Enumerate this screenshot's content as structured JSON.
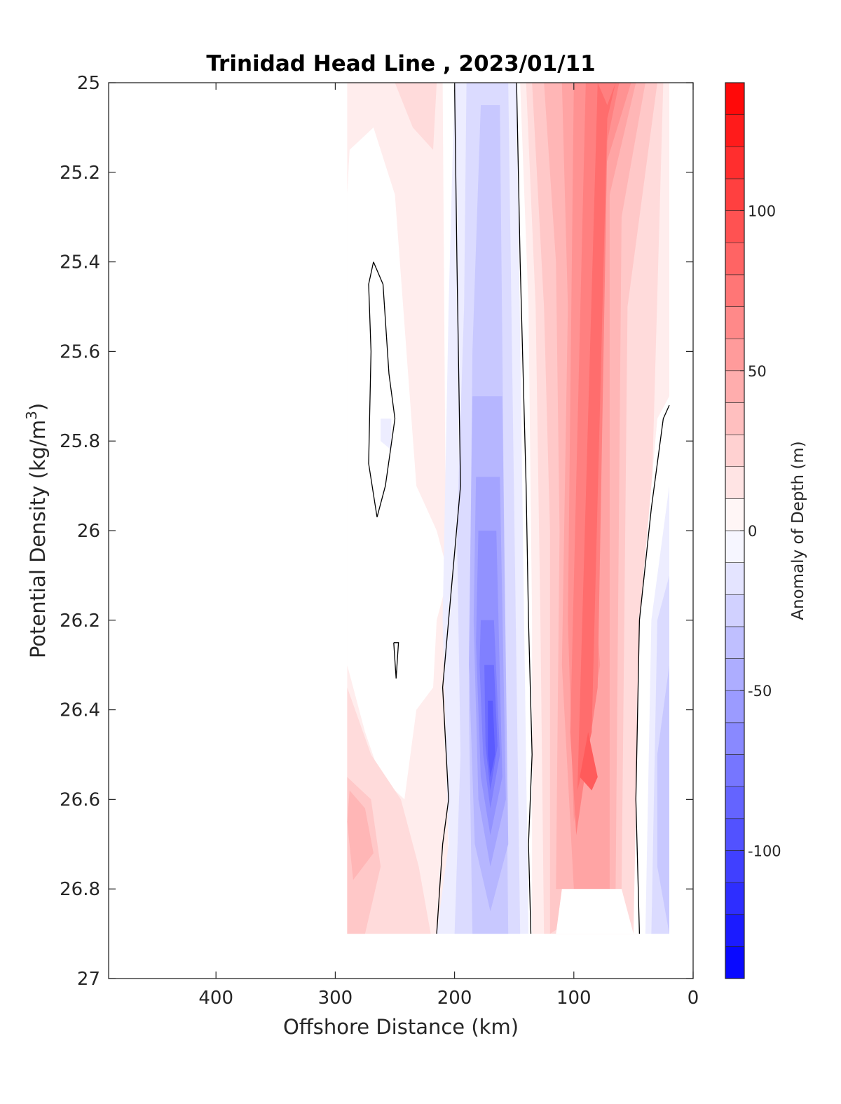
{
  "chart_data": {
    "type": "heatmap",
    "subtype": "filled-contour",
    "title": "Trinidad Head Line , 2023/01/11",
    "xlabel": "Offshore Distance (km)",
    "ylabel": "Potential Density (kg/m",
    "ylabel_sup": "3",
    "ylabel_tail": ")",
    "xlim": [
      490,
      0
    ],
    "x_reversed": true,
    "ylim": [
      25,
      27
    ],
    "y_reversed": true,
    "xticks": [
      400,
      300,
      200,
      100,
      0
    ],
    "xtick_labels": [
      "400",
      "300",
      "200",
      "100",
      "0"
    ],
    "yticks": [
      25,
      25.2,
      25.4,
      25.6,
      25.8,
      26,
      26.2,
      26.4,
      26.6,
      26.8,
      27
    ],
    "ytick_labels": [
      "25",
      "25.2",
      "25.4",
      "25.6",
      "25.8",
      "26",
      "26.2",
      "26.4",
      "26.6",
      "26.8",
      "27"
    ],
    "colorbar": {
      "label": "Anomaly of Depth (m)",
      "range": [
        -140,
        140
      ],
      "level_step": 10,
      "ticks": [
        100,
        50,
        0,
        -50,
        -100
      ],
      "tick_labels": [
        "100",
        "50",
        "0",
        "-50",
        "-100"
      ],
      "colormap": "blue-white-red",
      "neg_color": "#0000ff",
      "mid_color": "#ffffff",
      "pos_color": "#ff0000"
    },
    "data_extent": {
      "x": [
        20,
        290
      ],
      "y": [
        25,
        26.9
      ]
    },
    "bands": [
      {
        "name": "offshore-pink",
        "points": [
          [
            290,
            25
          ],
          [
            210,
            25
          ],
          [
            205,
            26.9
          ],
          [
            290,
            26.9
          ]
        ],
        "value": 10
      },
      {
        "name": "offshore-pink-top",
        "points": [
          [
            250,
            25
          ],
          [
            215,
            25
          ],
          [
            218,
            25.15
          ],
          [
            235,
            25.1
          ]
        ],
        "value": 20
      },
      {
        "name": "offshore-white-upper",
        "points": [
          [
            288,
            25.15
          ],
          [
            268,
            25.1
          ],
          [
            250,
            25.25
          ],
          [
            232,
            25.9
          ],
          [
            215,
            26
          ],
          [
            205,
            26.1
          ],
          [
            215,
            26.2
          ],
          [
            218,
            26.35
          ],
          [
            232,
            26.4
          ],
          [
            242,
            26.6
          ],
          [
            262,
            26.55
          ],
          [
            275,
            26.45
          ],
          [
            290,
            26.3
          ],
          [
            290,
            25.25
          ]
        ],
        "value": 0
      },
      {
        "name": "offshore-pink-lower",
        "points": [
          [
            290,
            26.35
          ],
          [
            270,
            26.5
          ],
          [
            245,
            26.6
          ],
          [
            230,
            26.75
          ],
          [
            220,
            26.9
          ],
          [
            290,
            26.9
          ]
        ],
        "value": 20
      },
      {
        "name": "offshore-pink-core1",
        "points": [
          [
            290,
            26.55
          ],
          [
            270,
            26.6
          ],
          [
            262,
            26.75
          ],
          [
            275,
            26.9
          ],
          [
            290,
            26.9
          ]
        ],
        "value": 30
      },
      {
        "name": "offshore-pink-core2",
        "points": [
          [
            288,
            26.58
          ],
          [
            275,
            26.62
          ],
          [
            268,
            26.72
          ],
          [
            285,
            26.78
          ],
          [
            290,
            26.65
          ]
        ],
        "value": 40
      },
      {
        "name": "blue-band-1",
        "points": [
          [
            200,
            25
          ],
          [
            148,
            25
          ],
          [
            138,
            26.9
          ],
          [
            215,
            26.9
          ],
          [
            205,
            26.7
          ],
          [
            210,
            26.2
          ],
          [
            205,
            25.5
          ]
        ],
        "value": -10
      },
      {
        "name": "blue-band-2",
        "points": [
          [
            190,
            25
          ],
          [
            155,
            25
          ],
          [
            145,
            26.9
          ],
          [
            200,
            26.9
          ],
          [
            195,
            26.5
          ],
          [
            198,
            26
          ],
          [
            192,
            25.5
          ]
        ],
        "value": -20
      },
      {
        "name": "blue-band-3",
        "points": [
          [
            178,
            25.05
          ],
          [
            162,
            25.05
          ],
          [
            155,
            26.9
          ],
          [
            185,
            26.9
          ],
          [
            188,
            26.4
          ],
          [
            185,
            25.6
          ]
        ],
        "value": -30
      },
      {
        "name": "blue-band-4",
        "points": [
          [
            185,
            25.7
          ],
          [
            160,
            25.7
          ],
          [
            155,
            26.7
          ],
          [
            170,
            26.85
          ],
          [
            183,
            26.7
          ],
          [
            188,
            26.3
          ]
        ],
        "value": -40
      },
      {
        "name": "blue-band-5",
        "points": [
          [
            182,
            25.88
          ],
          [
            162,
            25.88
          ],
          [
            157,
            26.6
          ],
          [
            170,
            26.75
          ],
          [
            180,
            26.6
          ],
          [
            184,
            26.2
          ]
        ],
        "value": -50
      },
      {
        "name": "blue-band-6",
        "points": [
          [
            180,
            26
          ],
          [
            165,
            26
          ],
          [
            160,
            26.55
          ],
          [
            170,
            26.68
          ],
          [
            178,
            26.55
          ],
          [
            182,
            26.25
          ]
        ],
        "value": -60
      },
      {
        "name": "blue-band-7",
        "points": [
          [
            178,
            26.2
          ],
          [
            167,
            26.2
          ],
          [
            162,
            26.5
          ],
          [
            170,
            26.62
          ],
          [
            176,
            26.5
          ],
          [
            179,
            26.3
          ]
        ],
        "value": -70
      },
      {
        "name": "blue-band-8",
        "points": [
          [
            175,
            26.3
          ],
          [
            167,
            26.3
          ],
          [
            164,
            26.48
          ],
          [
            170,
            26.58
          ],
          [
            174,
            26.48
          ]
        ],
        "value": -80
      },
      {
        "name": "blue-band-9",
        "points": [
          [
            172,
            26.38
          ],
          [
            168,
            26.38
          ],
          [
            166,
            26.5
          ],
          [
            170,
            26.55
          ],
          [
            172,
            26.5
          ]
        ],
        "value": -90
      },
      {
        "name": "blue-speck-offshore",
        "points": [
          [
            262,
            25.75
          ],
          [
            253,
            25.75
          ],
          [
            253,
            25.82
          ],
          [
            262,
            25.8
          ]
        ],
        "value": -10
      },
      {
        "name": "red-band-1",
        "points": [
          [
            145,
            25
          ],
          [
            20,
            25
          ],
          [
            20,
            26.9
          ],
          [
            135,
            26.9
          ],
          [
            135,
            26.2
          ],
          [
            138,
            25.5
          ]
        ],
        "value": 10
      },
      {
        "name": "red-band-2",
        "points": [
          [
            140,
            25
          ],
          [
            25,
            25
          ],
          [
            45,
            26.9
          ],
          [
            125,
            26.9
          ],
          [
            128,
            26.2
          ],
          [
            132,
            25.5
          ]
        ],
        "value": 20
      },
      {
        "name": "red-band-3",
        "points": [
          [
            135,
            25
          ],
          [
            30,
            25
          ],
          [
            55,
            25.5
          ],
          [
            60,
            26.8
          ],
          [
            120,
            26.9
          ],
          [
            120,
            26
          ],
          [
            125,
            25.5
          ]
        ],
        "value": 30
      },
      {
        "name": "red-band-4",
        "points": [
          [
            125,
            25
          ],
          [
            40,
            25
          ],
          [
            60,
            25.3
          ],
          [
            65,
            26.8
          ],
          [
            115,
            26.8
          ],
          [
            112,
            26
          ],
          [
            115,
            25.4
          ]
        ],
        "value": 40
      },
      {
        "name": "red-band-5",
        "points": [
          [
            110,
            25
          ],
          [
            48,
            25
          ],
          [
            70,
            25.25
          ],
          [
            70,
            26.8
          ],
          [
            100,
            26.8
          ],
          [
            110,
            26.3
          ],
          [
            105,
            25.5
          ]
        ],
        "value": 50
      },
      {
        "name": "red-band-6",
        "points": [
          [
            100,
            25
          ],
          [
            52,
            25
          ],
          [
            75,
            25.2
          ],
          [
            85,
            26.05
          ],
          [
            78,
            26.3
          ],
          [
            100,
            26.65
          ],
          [
            105,
            26.2
          ]
        ],
        "value": 60
      },
      {
        "name": "red-band-7",
        "points": [
          [
            90,
            25
          ],
          [
            62,
            25
          ],
          [
            72,
            25.13
          ],
          [
            80,
            26.35
          ],
          [
            98,
            26.68
          ],
          [
            103,
            26.45
          ]
        ],
        "value": 70
      },
      {
        "name": "red-band-8",
        "points": [
          [
            80,
            25
          ],
          [
            65,
            25
          ],
          [
            72,
            25.08
          ],
          [
            85,
            26.45
          ],
          [
            97,
            26.58
          ]
        ],
        "value": 80
      },
      {
        "name": "red-band-9",
        "points": [
          [
            88,
            26.45
          ],
          [
            80,
            26.55
          ],
          [
            85,
            26.58
          ],
          [
            95,
            26.55
          ]
        ],
        "value": 90
      },
      {
        "name": "red-core-top",
        "points": [
          [
            80,
            25
          ],
          [
            65,
            25
          ],
          [
            72,
            25.05
          ]
        ],
        "value": 70
      },
      {
        "name": "nearshore-white-bottom",
        "points": [
          [
            110,
            26.8
          ],
          [
            60,
            26.8
          ],
          [
            50,
            26.9
          ],
          [
            115,
            26.9
          ]
        ],
        "value": 0
      },
      {
        "name": "nearshore-white",
        "points": [
          [
            20,
            25.7
          ],
          [
            30,
            25.75
          ],
          [
            45,
            26.2
          ],
          [
            50,
            26.9
          ],
          [
            20,
            26.9
          ]
        ],
        "value": 0
      },
      {
        "name": "nearshore-blue-1",
        "points": [
          [
            20,
            25.9
          ],
          [
            35,
            26.2
          ],
          [
            40,
            26.9
          ],
          [
            20,
            26.9
          ]
        ],
        "value": -10
      },
      {
        "name": "nearshore-blue-2",
        "points": [
          [
            20,
            26.1
          ],
          [
            30,
            26.2
          ],
          [
            35,
            26.9
          ],
          [
            20,
            26.9
          ]
        ],
        "value": -20
      },
      {
        "name": "nearshore-blue-3",
        "points": [
          [
            20,
            26.3
          ],
          [
            30,
            26.5
          ],
          [
            30,
            26.75
          ],
          [
            20,
            26.9
          ]
        ],
        "value": -30
      }
    ],
    "zero_contours": [
      {
        "name": "contour-west",
        "points": [
          [
            200,
            25
          ],
          [
            198,
            25.4
          ],
          [
            195,
            25.9
          ],
          [
            205,
            26.2
          ],
          [
            210,
            26.35
          ],
          [
            205,
            26.6
          ],
          [
            210,
            26.7
          ],
          [
            215,
            26.9
          ]
        ]
      },
      {
        "name": "contour-east",
        "points": [
          [
            148,
            25
          ],
          [
            145,
            25.4
          ],
          [
            140,
            25.9
          ],
          [
            138,
            26.2
          ],
          [
            135,
            26.5
          ],
          [
            138,
            26.7
          ],
          [
            136,
            26.9
          ]
        ]
      },
      {
        "name": "contour-loop",
        "points": [
          [
            268,
            25.4
          ],
          [
            260,
            25.45
          ],
          [
            255,
            25.65
          ],
          [
            250,
            25.75
          ],
          [
            258,
            25.9
          ],
          [
            265,
            25.97
          ],
          [
            272,
            25.85
          ],
          [
            270,
            25.6
          ],
          [
            272,
            25.45
          ],
          [
            268,
            25.4
          ]
        ]
      },
      {
        "name": "contour-small-loop",
        "points": [
          [
            251,
            26.25
          ],
          [
            247,
            26.25
          ],
          [
            249,
            26.33
          ],
          [
            251,
            26.25
          ]
        ]
      },
      {
        "name": "contour-nearshore",
        "points": [
          [
            20,
            25.72
          ],
          [
            25,
            25.75
          ],
          [
            35,
            25.95
          ],
          [
            45,
            26.2
          ],
          [
            48,
            26.6
          ],
          [
            45,
            26.9
          ]
        ]
      }
    ]
  }
}
